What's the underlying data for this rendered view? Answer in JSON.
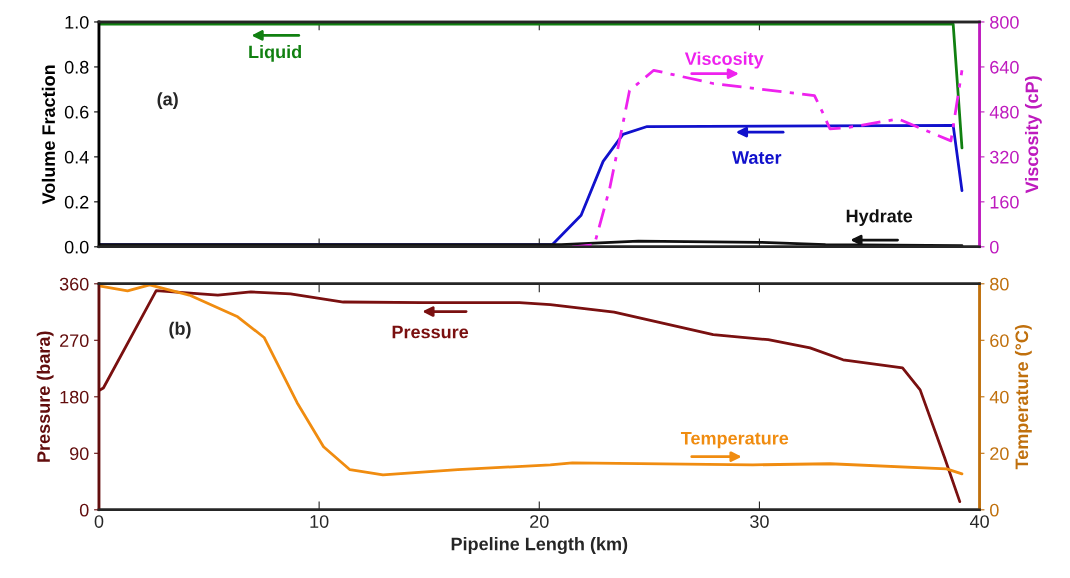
{
  "chart_data": [
    {
      "type": "line",
      "xlim": [
        0,
        40
      ],
      "xticks": [
        0,
        10,
        20,
        30,
        40
      ],
      "tick_labels": "y",
      "legend": "top",
      "ylabel": "Volume Fraction",
      "ylim": [
        0,
        1.0
      ],
      "yticks": [
        {
          "value": 0,
          "label": "0.0"
        },
        0.2,
        0.4,
        0.6,
        0.8,
        {
          "value": 1,
          "label": "1.0"
        }
      ],
      "y2label": "Viscosity (cP)",
      "y2lim": [
        0,
        800
      ],
      "y2ticks": [
        0,
        160,
        320,
        480,
        640,
        800
      ],
      "annotations": [
        "(a)"
      ],
      "series": [
        {
          "name": "Liquid",
          "color": "#118011",
          "x": [
            0,
            38.8,
            39.2
          ],
          "values": [
            0.99,
            0.99,
            0.44
          ]
        },
        {
          "name": "Viscosity",
          "color": "#ee22ee",
          "axis": "y2",
          "line_style": "dashed",
          "x": [
            21.5,
            22.5,
            23.2,
            23.7,
            24.1,
            25.2,
            27.9,
            32.5,
            32.9,
            33.2,
            34.0,
            36.3,
            38.7,
            39.2
          ],
          "values": [
            0,
            7,
            208,
            400,
            556,
            628,
            581,
            538,
            473,
            420,
            424,
            455,
            377,
            628
          ]
        },
        {
          "name": "Water",
          "color": "#1111cc",
          "x": [
            0,
            20.6,
            21.9,
            22.9,
            23.8,
            24.9,
            38.8,
            39.2
          ],
          "values": [
            0.01,
            0.01,
            0.14,
            0.38,
            0.5,
            0.535,
            0.54,
            0.25
          ]
        },
        {
          "name": "Hydrate",
          "color": "#111111",
          "x": [
            0,
            21,
            24.5,
            30,
            33,
            39.2
          ],
          "values": [
            0.01,
            0.01,
            0.025,
            0.02,
            0.01,
            0.005
          ]
        }
      ]
    },
    {
      "type": "line",
      "xlim": [
        0,
        40
      ],
      "xticks": [
        0,
        10,
        20,
        30,
        40
      ],
      "xlabel": "Pipeline Length (km)",
      "legend": "top",
      "ylabel": "Pressure (bara)",
      "ylim": [
        0,
        360
      ],
      "yticks": [
        0,
        90,
        180,
        270,
        360
      ],
      "y2label": "Temperature (°C)",
      "y2lim": [
        0,
        80
      ],
      "y2ticks": [
        0,
        20,
        40,
        60,
        80
      ],
      "annotations": [
        "(b)"
      ],
      "series": [
        {
          "name": "Pressure",
          "color": "#7a1010",
          "x": [
            0,
            0.2,
            2.6,
            5.4,
            6.9,
            8.7,
            11.1,
            14.7,
            19.1,
            20.5,
            23.4,
            27.9,
            30.4,
            32.3,
            33.8,
            36.5,
            37.3,
            38.4,
            39.1
          ],
          "values": [
            190,
            194,
            349,
            342,
            347,
            344,
            331,
            330,
            330,
            327,
            315,
            279,
            271,
            258,
            239,
            226,
            191,
            84,
            13
          ]
        },
        {
          "name": "Temperature",
          "color": "#f08c10",
          "axis": "y2",
          "x": [
            0,
            1.3,
            2.3,
            4.1,
            6.3,
            7.5,
            9.0,
            10.2,
            11.4,
            12.9,
            16.3,
            20.5,
            21.5,
            29.7,
            33.2,
            38.5,
            39.2
          ],
          "values": [
            79.3,
            77.5,
            79.6,
            76,
            68.3,
            61,
            37.9,
            22.3,
            14.2,
            12.4,
            14.2,
            15.9,
            16.6,
            15.9,
            16.3,
            14.5,
            12.7
          ]
        }
      ]
    }
  ]
}
